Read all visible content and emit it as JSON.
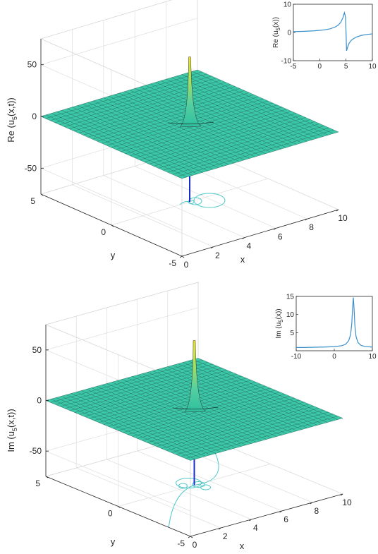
{
  "chart_data": [
    {
      "type": "surface",
      "zlabel": "Re (u",
      "zlabel_sub": "5",
      "zlabel_end": "(x,t))",
      "xlabel": "x",
      "ylabel": "y",
      "x_ticks": [
        "0",
        "2",
        "4",
        "6",
        "8",
        "10"
      ],
      "y_ticks": [
        "5",
        "0",
        "-5"
      ],
      "z_ticks": [
        "50",
        "0",
        "-50"
      ],
      "xlim": [
        0,
        10
      ],
      "ylim": [
        -5,
        5
      ],
      "zlim": [
        -75,
        75
      ],
      "grid": true,
      "colormap": [
        "#2fbf9f",
        "#55d0a0",
        "#a8e060",
        "#f5e625"
      ],
      "surface_color": "#3cc8a8",
      "peak": {
        "x": 5,
        "y": 0,
        "z": 65
      },
      "inset": {
        "type": "line",
        "ylabel": "Re (u",
        "ylabel_sub": "5",
        "ylabel_end": "(x))",
        "x_ticks": [
          "-5",
          "0",
          "5",
          "10"
        ],
        "y_ticks": [
          "10",
          "0",
          "-10"
        ],
        "xlim": [
          -5,
          10
        ],
        "ylim": [
          -10,
          10
        ],
        "line_color": "#3a8fcc",
        "x": [
          -5,
          -4,
          -3,
          -2,
          -1,
          0,
          1,
          2,
          3,
          3.5,
          4,
          4.4,
          4.7,
          4.9,
          5.0,
          5.1,
          5.3,
          5.6,
          6,
          6.5,
          7,
          8,
          9,
          10
        ],
        "y": [
          0.3,
          0.35,
          0.4,
          0.5,
          0.6,
          0.75,
          0.95,
          1.3,
          2.0,
          2.6,
          3.6,
          5.2,
          7.0,
          5.5,
          0,
          -6.5,
          -5.2,
          -3.8,
          -2.8,
          -2.1,
          -1.6,
          -1.0,
          -0.7,
          -0.5
        ]
      }
    },
    {
      "type": "surface",
      "zlabel": "Im (u",
      "zlabel_sub": "5",
      "zlabel_end": "(x,t))",
      "xlabel": "x",
      "ylabel": "y",
      "x_ticks": [
        "0",
        "2",
        "4",
        "6",
        "8",
        "10"
      ],
      "y_ticks": [
        "5",
        "0",
        "-5"
      ],
      "z_ticks": [
        "50",
        "0",
        "-50"
      ],
      "xlim": [
        0,
        10
      ],
      "ylim": [
        -5,
        5
      ],
      "zlim": [
        -75,
        75
      ],
      "grid": true,
      "colormap": [
        "#2fbf9f",
        "#55d0a0",
        "#a8e060",
        "#f5e625"
      ],
      "surface_color": "#3cc8a8",
      "peak": {
        "x": 5,
        "y": 0,
        "z": 68
      },
      "inset": {
        "type": "line",
        "ylabel": "Im (u",
        "ylabel_sub": "5",
        "ylabel_end": "(x))",
        "x_ticks": [
          "-10",
          "0",
          "10"
        ],
        "y_ticks": [
          "15",
          "10",
          "5"
        ],
        "xlim": [
          -10,
          10
        ],
        "ylim": [
          0,
          15
        ],
        "line_color": "#3a8fcc",
        "x": [
          -10,
          -8,
          -6,
          -4,
          -2,
          0,
          2,
          3,
          3.8,
          4.3,
          4.6,
          4.8,
          5.0,
          5.2,
          5.4,
          5.7,
          6.2,
          7,
          8,
          10
        ],
        "y": [
          0.9,
          0.9,
          0.95,
          1.0,
          1.05,
          1.15,
          1.4,
          1.8,
          2.8,
          4.5,
          7.5,
          11.5,
          14.7,
          11.5,
          7.0,
          4.0,
          2.3,
          1.5,
          1.2,
          1.0
        ]
      }
    }
  ]
}
